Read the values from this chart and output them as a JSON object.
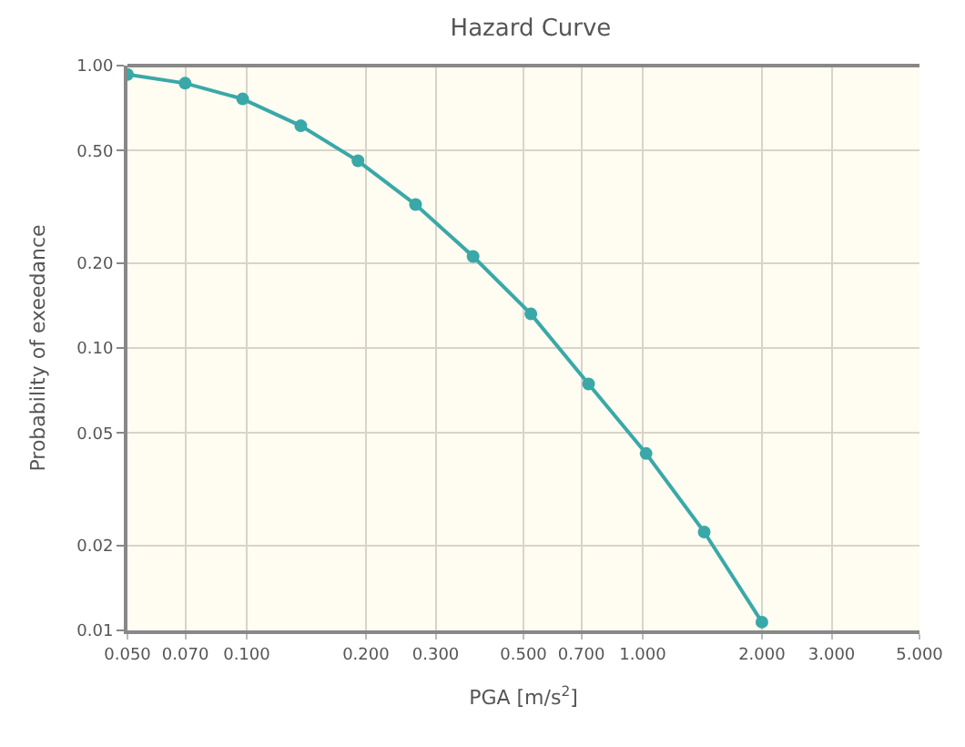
{
  "chart_data": {
    "type": "line",
    "title": "Hazard Curve",
    "xlabel": "PGA [m/s$^{2}$]",
    "ylabel": "Probability of exeedance",
    "x": [
      0.05,
      0.0699,
      0.0977,
      0.137,
      0.191,
      0.267,
      0.373,
      0.522,
      0.73,
      1.02,
      1.43,
      2.0
    ],
    "series": [
      {
        "color": "#3aa8a8",
        "values": [
          0.93,
          0.866,
          0.762,
          0.612,
          0.46,
          0.322,
          0.211,
          0.132,
          0.0746,
          0.0423,
          0.0223,
          0.0107
        ]
      }
    ],
    "log": "xy",
    "xlim": [
      0.05,
      5
    ],
    "ylim": [
      0.01,
      1
    ],
    "xticks": [
      {
        "value": 0.05,
        "label": "0.050"
      },
      {
        "value": 0.07,
        "label": "0.070"
      },
      {
        "value": 0.1,
        "label": "0.100"
      },
      {
        "value": 0.2,
        "label": "0.200"
      },
      {
        "value": 0.3,
        "label": "0.300"
      },
      {
        "value": 0.5,
        "label": "0.500"
      },
      {
        "value": 0.7,
        "label": "0.700"
      },
      {
        "value": 1,
        "label": "1.000"
      },
      {
        "value": 2,
        "label": "2.000"
      },
      {
        "value": 3,
        "label": "3.000"
      },
      {
        "value": 5,
        "label": "5.000"
      }
    ],
    "yticks": [
      {
        "value": 0.01,
        "label": "0.01"
      },
      {
        "value": 0.02,
        "label": "0.02"
      },
      {
        "value": 0.05,
        "label": "0.05"
      },
      {
        "value": 0.1,
        "label": "0.10"
      },
      {
        "value": 0.2,
        "label": "0.20"
      },
      {
        "value": 0.5,
        "label": "0.50"
      },
      {
        "value": 1,
        "label": "1.00"
      }
    ],
    "grid": true,
    "marker": "circle",
    "line_style": "solid"
  }
}
